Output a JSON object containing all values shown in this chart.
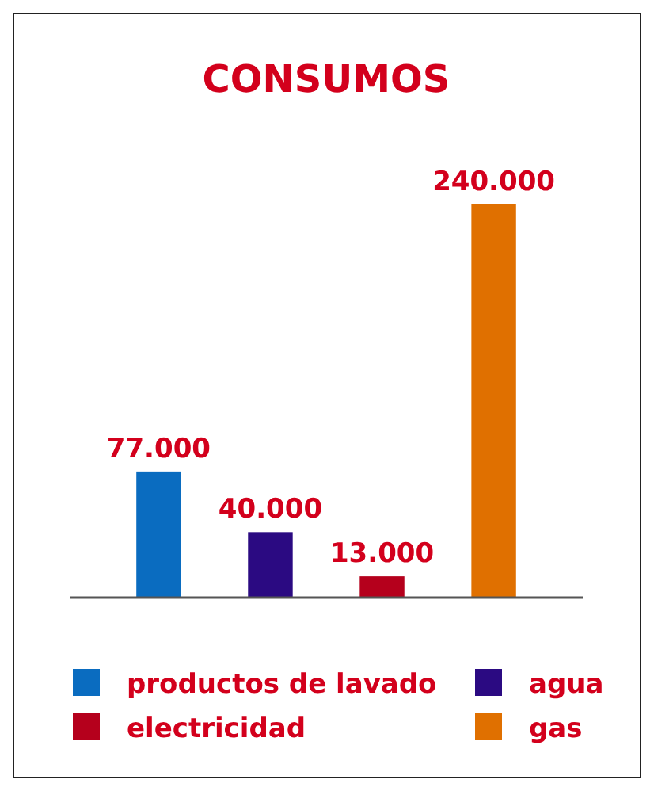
{
  "chart_data": {
    "type": "bar",
    "title": "CONSUMOS",
    "categories": [
      null,
      null,
      null,
      null
    ],
    "series": [
      {
        "name": "productos de lavado",
        "color": "#0a6cc0",
        "values": [
          77000,
          null,
          null,
          null
        ],
        "value_labels": [
          "77.000",
          null,
          null,
          null
        ]
      },
      {
        "name": "agua",
        "color": "#2b0a82",
        "values": [
          null,
          40000,
          null,
          null
        ],
        "value_labels": [
          null,
          "40.000",
          null,
          null
        ]
      },
      {
        "name": "electricidad",
        "color": "#b5001c",
        "values": [
          null,
          null,
          13000,
          null
        ],
        "value_labels": [
          null,
          null,
          "13.000",
          null
        ]
      },
      {
        "name": "gas",
        "color": "#e07000",
        "values": [
          null,
          null,
          null,
          240000
        ],
        "value_labels": [
          null,
          null,
          null,
          "240.000"
        ]
      }
    ],
    "stacked": true,
    "legend": "bottom"
  }
}
